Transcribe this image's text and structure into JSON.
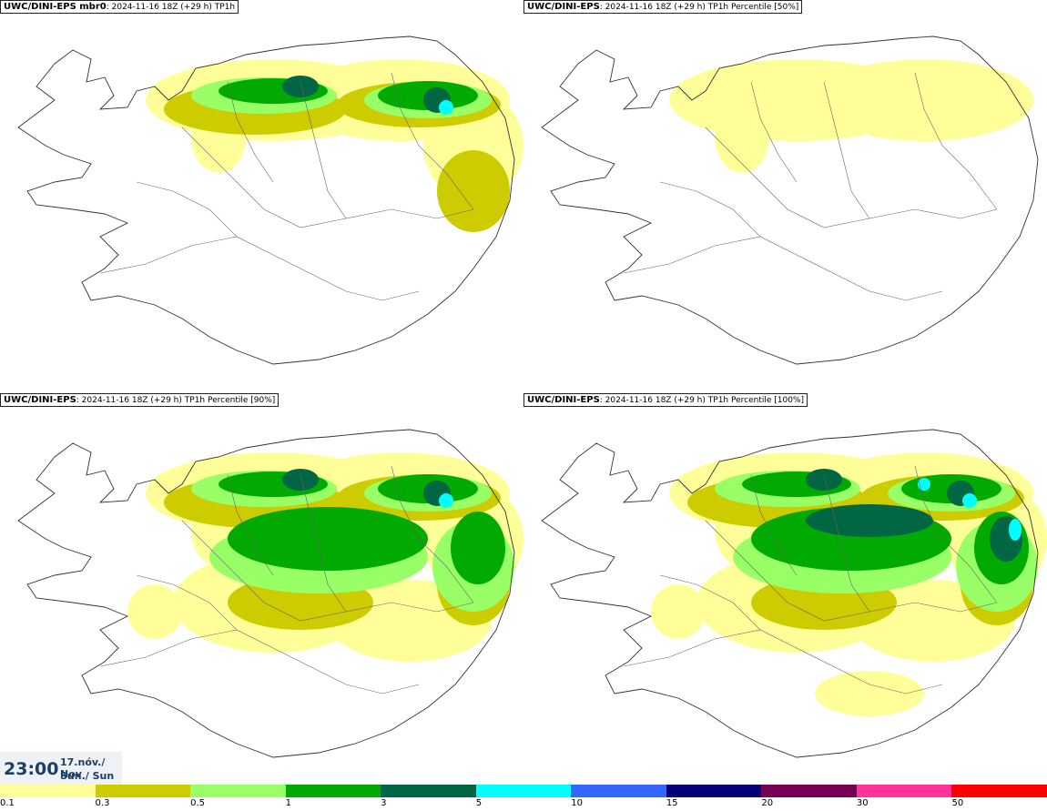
{
  "panels": [
    {
      "id": "p0",
      "model": "UWC/DINI-EPS mbr0",
      "run": "2024-11-16 18Z (+29 h)",
      "field": "TP1h",
      "intensity": 0.55
    },
    {
      "id": "p1",
      "model": "UWC/DINI-EPS",
      "run": "2024-11-16 18Z (+29 h)",
      "field": "TP1h Percentile [50%]",
      "intensity": 0.25
    },
    {
      "id": "p2",
      "model": "UWC/DINI-EPS",
      "run": "2024-11-16 18Z (+29 h)",
      "field": "TP1h Percentile [90%]",
      "intensity": 0.75
    },
    {
      "id": "p3",
      "model": "UWC/DINI-EPS",
      "run": "2024-11-16 18Z (+29 h)",
      "field": "TP1h Percentile [100%]",
      "intensity": 1.0
    }
  ],
  "time": {
    "clock": "23:00",
    "date_line": "17.nóv./ Nov",
    "day_line": "Sun./ Sun"
  },
  "legend": {
    "ticks": [
      "0.1",
      "0.3",
      "0.5",
      "1",
      "3",
      "5",
      "10",
      "15",
      "20",
      "30",
      "50"
    ],
    "colors": [
      "#ffff99",
      "#cccc00",
      "#99ff66",
      "#00aa00",
      "#006644",
      "#00ffff",
      "#3366ff",
      "#000077",
      "#770055",
      "#ff3399",
      "#ff0000"
    ]
  }
}
